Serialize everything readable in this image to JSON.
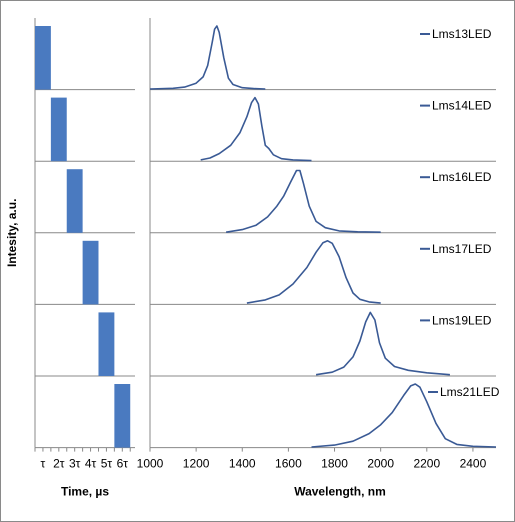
{
  "chart_data": [
    {
      "type": "bar",
      "title": "",
      "xlabel": "Time, µs",
      "ylabel": "Intesity, a.u.",
      "tick_labels": [
        "τ",
        "2τ",
        "3τ",
        "4τ",
        "5τ",
        "6τ"
      ],
      "pulse_windows": [
        {
          "start": 0,
          "end": 1
        },
        {
          "start": 1,
          "end": 2
        },
        {
          "start": 2,
          "end": 3
        },
        {
          "start": 3,
          "end": 4
        },
        {
          "start": 4,
          "end": 5
        },
        {
          "start": 5,
          "end": 6
        }
      ],
      "xlim": [
        0,
        6.3
      ],
      "grid": false,
      "color": "#4a7ac0"
    },
    {
      "type": "line",
      "title": "",
      "xlabel": "Wavelength, nm",
      "ylabel": "",
      "xticks": [
        1000,
        1200,
        1400,
        1600,
        1800,
        2000,
        2200,
        2400
      ],
      "xlim": [
        1000,
        2500
      ],
      "grid": false,
      "legend_placement": "right of each panel",
      "series": [
        {
          "name": "Lms13LED",
          "color": "#3a5a95",
          "points": [
            [
              1000,
              0.01
            ],
            [
              1100,
              0.02
            ],
            [
              1150,
              0.04
            ],
            [
              1200,
              0.1
            ],
            [
              1230,
              0.2
            ],
            [
              1250,
              0.38
            ],
            [
              1270,
              0.75
            ],
            [
              1280,
              0.95
            ],
            [
              1290,
              1.0
            ],
            [
              1300,
              0.9
            ],
            [
              1320,
              0.5
            ],
            [
              1340,
              0.18
            ],
            [
              1360,
              0.08
            ],
            [
              1400,
              0.03
            ],
            [
              1450,
              0.015
            ],
            [
              1500,
              0.01
            ]
          ]
        },
        {
          "name": "Lms14LED",
          "color": "#3a5a95",
          "points": [
            [
              1220,
              0.02
            ],
            [
              1260,
              0.05
            ],
            [
              1300,
              0.12
            ],
            [
              1350,
              0.25
            ],
            [
              1390,
              0.45
            ],
            [
              1420,
              0.7
            ],
            [
              1440,
              0.92
            ],
            [
              1455,
              1.0
            ],
            [
              1470,
              0.9
            ],
            [
              1485,
              0.55
            ],
            [
              1500,
              0.25
            ],
            [
              1515,
              0.2
            ],
            [
              1535,
              0.1
            ],
            [
              1570,
              0.04
            ],
            [
              1620,
              0.02
            ],
            [
              1700,
              0.01
            ]
          ]
        },
        {
          "name": "Lms16LED",
          "color": "#3a5a95",
          "points": [
            [
              1330,
              0.01
            ],
            [
              1400,
              0.05
            ],
            [
              1460,
              0.12
            ],
            [
              1510,
              0.25
            ],
            [
              1550,
              0.42
            ],
            [
              1580,
              0.58
            ],
            [
              1610,
              0.8
            ],
            [
              1635,
              0.98
            ],
            [
              1650,
              0.98
            ],
            [
              1665,
              0.78
            ],
            [
              1690,
              0.42
            ],
            [
              1720,
              0.18
            ],
            [
              1760,
              0.08
            ],
            [
              1820,
              0.03
            ],
            [
              1900,
              0.015
            ],
            [
              2000,
              0.01
            ]
          ]
        },
        {
          "name": "Lms17LED",
          "color": "#3a5a95",
          "points": [
            [
              1420,
              0.02
            ],
            [
              1500,
              0.07
            ],
            [
              1560,
              0.15
            ],
            [
              1620,
              0.32
            ],
            [
              1680,
              0.58
            ],
            [
              1720,
              0.82
            ],
            [
              1750,
              0.97
            ],
            [
              1770,
              1.0
            ],
            [
              1790,
              0.96
            ],
            [
              1820,
              0.75
            ],
            [
              1850,
              0.42
            ],
            [
              1880,
              0.18
            ],
            [
              1910,
              0.08
            ],
            [
              1950,
              0.04
            ],
            [
              2000,
              0.02
            ]
          ]
        },
        {
          "name": "Lms19LED",
          "color": "#3a5a95",
          "points": [
            [
              1720,
              0.02
            ],
            [
              1790,
              0.06
            ],
            [
              1840,
              0.14
            ],
            [
              1880,
              0.3
            ],
            [
              1910,
              0.55
            ],
            [
              1935,
              0.85
            ],
            [
              1955,
              1.0
            ],
            [
              1975,
              0.88
            ],
            [
              1995,
              0.52
            ],
            [
              2020,
              0.28
            ],
            [
              2060,
              0.15
            ],
            [
              2120,
              0.09
            ],
            [
              2200,
              0.05
            ],
            [
              2300,
              0.02
            ]
          ]
        },
        {
          "name": "Lms21LED",
          "color": "#3a5a95",
          "points": [
            [
              1700,
              0.01
            ],
            [
              1800,
              0.04
            ],
            [
              1880,
              0.1
            ],
            [
              1950,
              0.22
            ],
            [
              2000,
              0.36
            ],
            [
              2050,
              0.55
            ],
            [
              2100,
              0.82
            ],
            [
              2130,
              0.97
            ],
            [
              2150,
              1.0
            ],
            [
              2170,
              0.95
            ],
            [
              2200,
              0.72
            ],
            [
              2240,
              0.38
            ],
            [
              2280,
              0.14
            ],
            [
              2330,
              0.05
            ],
            [
              2400,
              0.02
            ],
            [
              2500,
              0.01
            ]
          ]
        }
      ]
    }
  ]
}
